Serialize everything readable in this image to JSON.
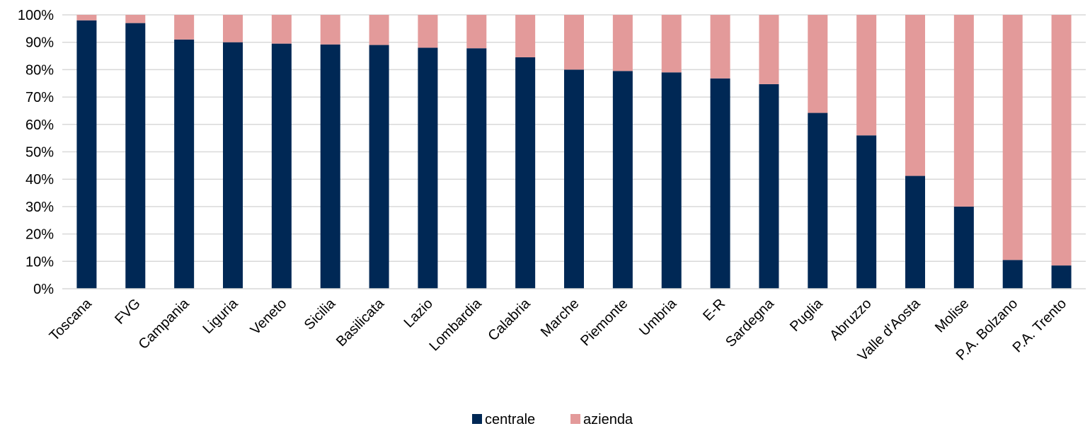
{
  "chart_data": {
    "type": "bar",
    "stacked": true,
    "categories": [
      "Toscana",
      "FVG",
      "Campania",
      "Liguria",
      "Veneto",
      "Sicilia",
      "Basilicata",
      "Lazio",
      "Lombardia",
      "Calabria",
      "Marche",
      "Piemonte",
      "Umbria",
      "E-R",
      "Sardegna",
      "Puglia",
      "Abruzzo",
      "Valle d'Aosta",
      "Molise",
      "P.A. Bolzano",
      "P.A. Trento"
    ],
    "series": [
      {
        "name": "centrale",
        "color": "#002855",
        "values": [
          98,
          97,
          91,
          90,
          89.5,
          89.2,
          89,
          88,
          87.8,
          84.5,
          80,
          79.5,
          79,
          76.8,
          74.7,
          64.2,
          56,
          41.2,
          30,
          10.5,
          8.5
        ]
      },
      {
        "name": "azienda",
        "color": "#E39A9A",
        "values": [
          2,
          3,
          9,
          10,
          10.5,
          10.8,
          11,
          12,
          12.2,
          15.5,
          20,
          20.5,
          21,
          23.2,
          25.3,
          35.8,
          44,
          58.8,
          70,
          89.5,
          91.5
        ]
      }
    ],
    "y_ticks": [
      "0%",
      "10%",
      "20%",
      "30%",
      "40%",
      "50%",
      "60%",
      "70%",
      "80%",
      "90%",
      "100%"
    ],
    "ylim": [
      0,
      100
    ],
    "grid": true,
    "legend_position": "bottom-center"
  }
}
